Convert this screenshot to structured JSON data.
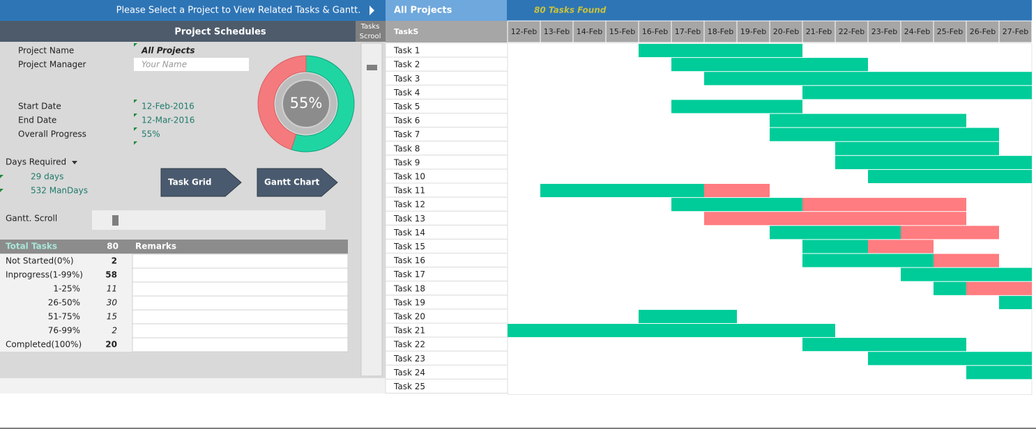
{
  "top_bar": {
    "prompt": "Please Select a Project to View Related Tasks & Gantt.",
    "project": "All Projects",
    "found": "80 Tasks Found"
  },
  "panel": {
    "title": "Project Schedules",
    "scroll_title": [
      "Tasks",
      "Scrool"
    ],
    "fields": [
      {
        "label": "Project Name",
        "value": "All Projects"
      },
      {
        "label": "Project Manager",
        "value": "Your Name"
      },
      {
        "label": "Start Date",
        "value": "12-Feb-2016"
      },
      {
        "label": "End Date",
        "value": "12-Mar-2016"
      },
      {
        "label": "Overall Progress",
        "value": "55%"
      }
    ],
    "progress": {
      "value": 55,
      "label": "55%"
    },
    "days": {
      "label": "Days Required",
      "days": "29 days",
      "man_days": "532 ManDays"
    },
    "buttons": [
      "Task Grid",
      "Gantt Chart"
    ],
    "scroll_label": "Gantt. Scroll",
    "stats": {
      "header": [
        "Total Tasks",
        80,
        "Remarks"
      ],
      "rows": [
        [
          "Not Started(0%)",
          2
        ],
        [
          "Inprogress(1-99%)",
          58
        ],
        [
          "1-25%",
          11
        ],
        [
          "26-50%",
          30
        ],
        [
          "51-75%",
          15
        ],
        [
          "76-99%",
          2
        ],
        [
          "Completed(100%)",
          20
        ]
      ]
    }
  },
  "gantt": {
    "header": "TaskS",
    "dates": [
      "12-Feb",
      "13-Feb",
      "14-Feb",
      "15-Feb",
      "16-Feb",
      "17-Feb",
      "18-Feb",
      "19-Feb",
      "20-Feb",
      "21-Feb",
      "22-Feb",
      "23-Feb",
      "24-Feb",
      "25-Feb",
      "26-Feb",
      "27-Feb"
    ],
    "tasks": [
      {
        "name": "Task 1",
        "start": 4,
        "done": 5,
        "late": 0
      },
      {
        "name": "Task 2",
        "start": 5,
        "done": 6,
        "late": 0
      },
      {
        "name": "Task 3",
        "start": 6,
        "done": 10,
        "late": 0
      },
      {
        "name": "Task 4",
        "start": 9,
        "done": 7,
        "late": 0
      },
      {
        "name": "Task 5",
        "start": 5,
        "done": 4,
        "late": 0
      },
      {
        "name": "Task 6",
        "start": 8,
        "done": 6,
        "late": 0
      },
      {
        "name": "Task 7",
        "start": 8,
        "done": 7,
        "late": 0
      },
      {
        "name": "Task 8",
        "start": 10,
        "done": 5,
        "late": 0
      },
      {
        "name": "Task 9",
        "start": 10,
        "done": 6,
        "late": 0
      },
      {
        "name": "Task 10",
        "start": 11,
        "done": 5,
        "late": 0
      },
      {
        "name": "Task 11",
        "start": 1,
        "done": 5,
        "late": 2
      },
      {
        "name": "Task 12",
        "start": 5,
        "done": 4,
        "late": 5
      },
      {
        "name": "Task 13",
        "start": 6,
        "done": 0,
        "late": 8
      },
      {
        "name": "Task 14",
        "start": 8,
        "done": 4,
        "late": 3
      },
      {
        "name": "Task 15",
        "start": 9,
        "done": 2,
        "late": 2
      },
      {
        "name": "Task 16",
        "start": 9,
        "done": 4,
        "late": 2
      },
      {
        "name": "Task 17",
        "start": 12,
        "done": 4,
        "late": 0
      },
      {
        "name": "Task 18",
        "start": 13,
        "done": 1,
        "late": 2
      },
      {
        "name": "Task 19",
        "start": 15,
        "done": 1,
        "late": 0
      },
      {
        "name": "Task 20",
        "start": 4,
        "done": 3,
        "late": 0
      },
      {
        "name": "Task 21",
        "start": 0,
        "done": 10,
        "late": 0
      },
      {
        "name": "Task 22",
        "start": 9,
        "done": 5,
        "late": 0
      },
      {
        "name": "Task 23",
        "start": 11,
        "done": 5,
        "late": 0
      },
      {
        "name": "Task 24",
        "start": 14,
        "done": 2,
        "late": 0
      },
      {
        "name": "Task 25"
      }
    ]
  }
}
